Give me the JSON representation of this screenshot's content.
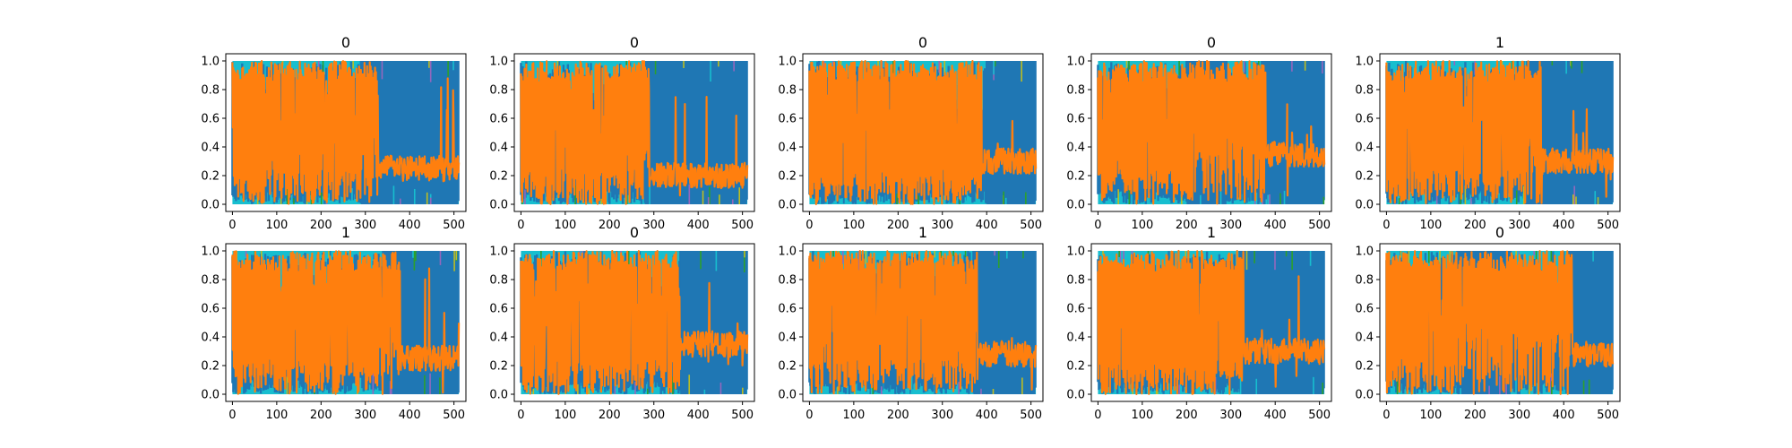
{
  "chart_data": {
    "type": "line",
    "layout": {
      "rows": 2,
      "cols": 5
    },
    "x_ticks": [
      0,
      100,
      200,
      300,
      400,
      500
    ],
    "y_ticks": [
      "0.0",
      "0.2",
      "0.4",
      "0.6",
      "0.8",
      "1.0"
    ],
    "xlim": [
      -15,
      527
    ],
    "ylim": [
      -0.05,
      1.05
    ],
    "grid": false,
    "legend": "none",
    "colors": {
      "blue": "#1f77b4",
      "orange": "#ff7f0e",
      "cyan": "#17becf",
      "olive": "#bcbd22",
      "green": "#2ca02c",
      "purple": "#9467bd"
    },
    "panels": [
      {
        "title": "0",
        "blue_block": [
          290,
          510
        ],
        "blue_block_2": [
          0,
          0
        ],
        "orange_tail_level": 0.25,
        "tail_start": 330
      },
      {
        "title": "0",
        "blue_block": [
          280,
          510
        ],
        "blue_block_2": [
          0,
          0
        ],
        "orange_tail_level": 0.2,
        "tail_start": 290
      },
      {
        "title": "0",
        "blue_block": [
          400,
          510
        ],
        "blue_block_2": [
          0,
          0
        ],
        "orange_tail_level": 0.3,
        "tail_start": 390
      },
      {
        "title": "0",
        "blue_block": [
          200,
          290
        ],
        "blue_block_2": [
          370,
          510
        ],
        "orange_tail_level": 0.35,
        "tail_start": 380
      },
      {
        "title": "1",
        "blue_block": [
          310,
          510
        ],
        "blue_block_2": [
          0,
          0
        ],
        "orange_tail_level": 0.3,
        "tail_start": 350
      },
      {
        "title": "1",
        "blue_block": [
          340,
          510
        ],
        "blue_block_2": [
          0,
          0
        ],
        "orange_tail_level": 0.25,
        "tail_start": 380
      },
      {
        "title": "0",
        "blue_block": [
          360,
          510
        ],
        "blue_block_2": [
          0,
          0
        ],
        "orange_tail_level": 0.35,
        "tail_start": 360
      },
      {
        "title": "1",
        "blue_block": [
          370,
          510
        ],
        "blue_block_2": [
          0,
          0
        ],
        "orange_tail_level": 0.28,
        "tail_start": 380
      },
      {
        "title": "1",
        "blue_block": [
          320,
          510
        ],
        "blue_block_2": [
          0,
          0
        ],
        "orange_tail_level": 0.3,
        "tail_start": 330
      },
      {
        "title": "0",
        "blue_block": [
          160,
          280
        ],
        "blue_block_2": [
          410,
          510
        ],
        "orange_tail_level": 0.28,
        "tail_start": 420
      }
    ]
  }
}
